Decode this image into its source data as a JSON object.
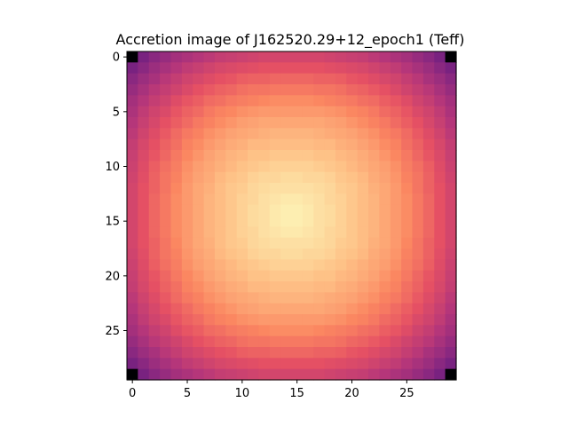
{
  "chart_data": {
    "type": "heatmap",
    "title": "Accretion image of J162520.29+12_epoch1 (Teff)",
    "xlabel": "",
    "ylabel": "",
    "colormap": "magma",
    "rows": 30,
    "cols": 30,
    "x_ticks": [
      0,
      5,
      10,
      15,
      20,
      25
    ],
    "y_ticks": [
      0,
      5,
      10,
      15,
      20,
      25
    ],
    "x_tick_labels": [
      "0",
      "5",
      "10",
      "15",
      "20",
      "25"
    ],
    "y_tick_labels": [
      "0",
      "5",
      "10",
      "15",
      "20",
      "25"
    ],
    "xlim": [
      -0.5,
      29.5
    ],
    "ylim": [
      29.5,
      -0.5
    ],
    "y_axis_inverted": true,
    "grid": false,
    "colorbar": false,
    "peak": {
      "x": 14.5,
      "y": 15
    },
    "corner_cells_masked": [
      [
        0,
        0
      ],
      [
        0,
        29
      ],
      [
        29,
        0
      ],
      [
        29,
        29
      ]
    ],
    "values": [
      [
        0.0,
        0.36,
        0.4,
        0.43,
        0.46,
        0.48,
        0.5,
        0.52,
        0.54,
        0.55,
        0.56,
        0.57,
        0.58,
        0.58,
        0.58,
        0.58,
        0.58,
        0.58,
        0.57,
        0.56,
        0.55,
        0.54,
        0.52,
        0.5,
        0.48,
        0.46,
        0.43,
        0.4,
        0.36,
        0.0
      ],
      [
        0.36,
        0.4,
        0.44,
        0.47,
        0.5,
        0.53,
        0.55,
        0.57,
        0.59,
        0.6,
        0.61,
        0.62,
        0.63,
        0.63,
        0.63,
        0.63,
        0.63,
        0.63,
        0.62,
        0.61,
        0.6,
        0.59,
        0.57,
        0.55,
        0.53,
        0.5,
        0.47,
        0.44,
        0.4,
        0.36
      ],
      [
        0.4,
        0.44,
        0.47,
        0.51,
        0.54,
        0.57,
        0.59,
        0.61,
        0.63,
        0.64,
        0.66,
        0.67,
        0.67,
        0.68,
        0.68,
        0.68,
        0.68,
        0.67,
        0.67,
        0.66,
        0.64,
        0.63,
        0.61,
        0.59,
        0.57,
        0.54,
        0.51,
        0.47,
        0.44,
        0.4
      ],
      [
        0.43,
        0.47,
        0.51,
        0.54,
        0.57,
        0.6,
        0.63,
        0.65,
        0.67,
        0.68,
        0.7,
        0.71,
        0.71,
        0.72,
        0.72,
        0.72,
        0.72,
        0.71,
        0.71,
        0.7,
        0.68,
        0.67,
        0.65,
        0.63,
        0.6,
        0.57,
        0.54,
        0.51,
        0.47,
        0.43
      ],
      [
        0.46,
        0.5,
        0.54,
        0.57,
        0.61,
        0.64,
        0.66,
        0.69,
        0.7,
        0.72,
        0.73,
        0.74,
        0.75,
        0.76,
        0.76,
        0.76,
        0.76,
        0.75,
        0.74,
        0.73,
        0.72,
        0.7,
        0.69,
        0.66,
        0.64,
        0.61,
        0.57,
        0.54,
        0.5,
        0.46
      ],
      [
        0.48,
        0.53,
        0.57,
        0.6,
        0.64,
        0.67,
        0.69,
        0.72,
        0.74,
        0.75,
        0.77,
        0.78,
        0.79,
        0.79,
        0.79,
        0.79,
        0.79,
        0.79,
        0.78,
        0.77,
        0.75,
        0.74,
        0.72,
        0.69,
        0.67,
        0.64,
        0.6,
        0.57,
        0.53,
        0.48
      ],
      [
        0.5,
        0.55,
        0.59,
        0.63,
        0.66,
        0.69,
        0.72,
        0.74,
        0.76,
        0.78,
        0.8,
        0.81,
        0.82,
        0.82,
        0.82,
        0.82,
        0.82,
        0.82,
        0.81,
        0.8,
        0.78,
        0.76,
        0.74,
        0.72,
        0.69,
        0.66,
        0.63,
        0.59,
        0.55,
        0.5
      ],
      [
        0.52,
        0.57,
        0.61,
        0.65,
        0.69,
        0.72,
        0.74,
        0.77,
        0.79,
        0.81,
        0.82,
        0.83,
        0.84,
        0.85,
        0.85,
        0.85,
        0.85,
        0.84,
        0.83,
        0.82,
        0.81,
        0.79,
        0.77,
        0.74,
        0.72,
        0.69,
        0.65,
        0.61,
        0.57,
        0.52
      ],
      [
        0.54,
        0.59,
        0.63,
        0.67,
        0.7,
        0.74,
        0.76,
        0.79,
        0.81,
        0.83,
        0.84,
        0.86,
        0.86,
        0.87,
        0.87,
        0.87,
        0.87,
        0.86,
        0.86,
        0.84,
        0.83,
        0.81,
        0.79,
        0.76,
        0.74,
        0.7,
        0.67,
        0.63,
        0.59,
        0.54
      ],
      [
        0.55,
        0.6,
        0.64,
        0.68,
        0.72,
        0.75,
        0.78,
        0.81,
        0.83,
        0.85,
        0.86,
        0.88,
        0.88,
        0.89,
        0.89,
        0.89,
        0.89,
        0.88,
        0.88,
        0.86,
        0.85,
        0.83,
        0.81,
        0.78,
        0.75,
        0.72,
        0.68,
        0.64,
        0.6,
        0.55
      ],
      [
        0.56,
        0.61,
        0.66,
        0.7,
        0.73,
        0.77,
        0.8,
        0.82,
        0.84,
        0.86,
        0.88,
        0.89,
        0.9,
        0.91,
        0.91,
        0.91,
        0.91,
        0.9,
        0.89,
        0.88,
        0.86,
        0.84,
        0.82,
        0.8,
        0.77,
        0.73,
        0.7,
        0.66,
        0.61,
        0.56
      ],
      [
        0.57,
        0.62,
        0.67,
        0.71,
        0.74,
        0.78,
        0.81,
        0.83,
        0.86,
        0.88,
        0.89,
        0.91,
        0.92,
        0.92,
        0.93,
        0.93,
        0.92,
        0.92,
        0.91,
        0.89,
        0.88,
        0.86,
        0.83,
        0.81,
        0.78,
        0.74,
        0.71,
        0.67,
        0.62,
        0.57
      ],
      [
        0.58,
        0.63,
        0.67,
        0.71,
        0.75,
        0.79,
        0.82,
        0.84,
        0.87,
        0.89,
        0.9,
        0.92,
        0.93,
        0.94,
        0.94,
        0.94,
        0.94,
        0.93,
        0.92,
        0.9,
        0.89,
        0.87,
        0.84,
        0.82,
        0.79,
        0.75,
        0.71,
        0.67,
        0.63,
        0.58
      ],
      [
        0.58,
        0.63,
        0.68,
        0.72,
        0.76,
        0.79,
        0.82,
        0.85,
        0.87,
        0.89,
        0.91,
        0.92,
        0.94,
        0.95,
        0.96,
        0.96,
        0.95,
        0.94,
        0.92,
        0.91,
        0.89,
        0.87,
        0.85,
        0.82,
        0.79,
        0.76,
        0.72,
        0.68,
        0.63,
        0.58
      ],
      [
        0.58,
        0.63,
        0.68,
        0.72,
        0.76,
        0.79,
        0.82,
        0.85,
        0.87,
        0.89,
        0.91,
        0.93,
        0.94,
        0.96,
        0.97,
        0.97,
        0.96,
        0.94,
        0.93,
        0.91,
        0.89,
        0.87,
        0.85,
        0.82,
        0.79,
        0.76,
        0.72,
        0.68,
        0.63,
        0.58
      ],
      [
        0.58,
        0.63,
        0.68,
        0.72,
        0.76,
        0.79,
        0.82,
        0.85,
        0.87,
        0.89,
        0.91,
        0.93,
        0.94,
        0.96,
        0.97,
        0.97,
        0.96,
        0.94,
        0.93,
        0.91,
        0.89,
        0.87,
        0.85,
        0.82,
        0.79,
        0.76,
        0.72,
        0.68,
        0.63,
        0.58
      ],
      [
        0.58,
        0.63,
        0.68,
        0.72,
        0.76,
        0.79,
        0.82,
        0.85,
        0.87,
        0.89,
        0.91,
        0.92,
        0.94,
        0.95,
        0.96,
        0.96,
        0.95,
        0.94,
        0.92,
        0.91,
        0.89,
        0.87,
        0.85,
        0.82,
        0.79,
        0.76,
        0.72,
        0.68,
        0.63,
        0.58
      ],
      [
        0.58,
        0.63,
        0.67,
        0.71,
        0.75,
        0.79,
        0.82,
        0.84,
        0.87,
        0.89,
        0.9,
        0.92,
        0.93,
        0.94,
        0.94,
        0.94,
        0.94,
        0.93,
        0.92,
        0.9,
        0.89,
        0.87,
        0.84,
        0.82,
        0.79,
        0.75,
        0.71,
        0.67,
        0.63,
        0.58
      ],
      [
        0.57,
        0.62,
        0.67,
        0.71,
        0.74,
        0.78,
        0.81,
        0.83,
        0.86,
        0.88,
        0.89,
        0.91,
        0.92,
        0.92,
        0.93,
        0.93,
        0.92,
        0.92,
        0.91,
        0.89,
        0.88,
        0.86,
        0.83,
        0.81,
        0.78,
        0.74,
        0.71,
        0.67,
        0.62,
        0.57
      ],
      [
        0.56,
        0.61,
        0.66,
        0.7,
        0.73,
        0.77,
        0.8,
        0.82,
        0.84,
        0.86,
        0.88,
        0.89,
        0.9,
        0.91,
        0.91,
        0.91,
        0.91,
        0.9,
        0.89,
        0.88,
        0.86,
        0.84,
        0.82,
        0.8,
        0.77,
        0.73,
        0.7,
        0.66,
        0.61,
        0.56
      ],
      [
        0.55,
        0.6,
        0.64,
        0.68,
        0.72,
        0.75,
        0.78,
        0.81,
        0.83,
        0.85,
        0.86,
        0.88,
        0.88,
        0.89,
        0.89,
        0.89,
        0.89,
        0.88,
        0.88,
        0.86,
        0.85,
        0.83,
        0.81,
        0.78,
        0.75,
        0.72,
        0.68,
        0.64,
        0.6,
        0.55
      ],
      [
        0.54,
        0.59,
        0.63,
        0.67,
        0.7,
        0.74,
        0.76,
        0.79,
        0.81,
        0.83,
        0.84,
        0.86,
        0.86,
        0.87,
        0.87,
        0.87,
        0.87,
        0.86,
        0.86,
        0.84,
        0.83,
        0.81,
        0.79,
        0.76,
        0.74,
        0.7,
        0.67,
        0.63,
        0.59,
        0.54
      ],
      [
        0.52,
        0.57,
        0.61,
        0.65,
        0.69,
        0.72,
        0.74,
        0.77,
        0.79,
        0.81,
        0.82,
        0.83,
        0.84,
        0.85,
        0.85,
        0.85,
        0.85,
        0.84,
        0.83,
        0.82,
        0.81,
        0.79,
        0.77,
        0.74,
        0.72,
        0.69,
        0.65,
        0.61,
        0.57,
        0.52
      ],
      [
        0.5,
        0.55,
        0.59,
        0.63,
        0.66,
        0.69,
        0.72,
        0.74,
        0.76,
        0.78,
        0.8,
        0.81,
        0.82,
        0.82,
        0.82,
        0.82,
        0.82,
        0.82,
        0.81,
        0.8,
        0.78,
        0.76,
        0.74,
        0.72,
        0.69,
        0.66,
        0.63,
        0.59,
        0.55,
        0.5
      ],
      [
        0.48,
        0.53,
        0.57,
        0.6,
        0.64,
        0.67,
        0.69,
        0.72,
        0.74,
        0.75,
        0.77,
        0.78,
        0.79,
        0.79,
        0.79,
        0.79,
        0.79,
        0.79,
        0.78,
        0.77,
        0.75,
        0.74,
        0.72,
        0.69,
        0.67,
        0.64,
        0.6,
        0.57,
        0.53,
        0.48
      ],
      [
        0.46,
        0.5,
        0.54,
        0.57,
        0.61,
        0.64,
        0.66,
        0.69,
        0.7,
        0.72,
        0.73,
        0.74,
        0.75,
        0.76,
        0.76,
        0.76,
        0.76,
        0.75,
        0.74,
        0.73,
        0.72,
        0.7,
        0.69,
        0.66,
        0.64,
        0.61,
        0.57,
        0.54,
        0.5,
        0.46
      ],
      [
        0.43,
        0.47,
        0.51,
        0.54,
        0.57,
        0.6,
        0.63,
        0.65,
        0.67,
        0.68,
        0.7,
        0.71,
        0.71,
        0.72,
        0.72,
        0.72,
        0.72,
        0.71,
        0.71,
        0.7,
        0.68,
        0.67,
        0.65,
        0.63,
        0.6,
        0.57,
        0.54,
        0.51,
        0.47,
        0.43
      ],
      [
        0.4,
        0.44,
        0.47,
        0.51,
        0.54,
        0.57,
        0.59,
        0.61,
        0.63,
        0.64,
        0.66,
        0.67,
        0.67,
        0.68,
        0.68,
        0.68,
        0.68,
        0.67,
        0.67,
        0.66,
        0.64,
        0.63,
        0.61,
        0.59,
        0.57,
        0.54,
        0.51,
        0.47,
        0.44,
        0.4
      ],
      [
        0.36,
        0.4,
        0.44,
        0.47,
        0.5,
        0.53,
        0.55,
        0.57,
        0.59,
        0.6,
        0.61,
        0.62,
        0.63,
        0.63,
        0.63,
        0.63,
        0.63,
        0.63,
        0.62,
        0.61,
        0.6,
        0.59,
        0.57,
        0.55,
        0.53,
        0.5,
        0.47,
        0.44,
        0.4,
        0.36
      ],
      [
        0.0,
        0.36,
        0.4,
        0.43,
        0.46,
        0.48,
        0.5,
        0.52,
        0.54,
        0.55,
        0.56,
        0.57,
        0.58,
        0.58,
        0.58,
        0.58,
        0.58,
        0.58,
        0.57,
        0.56,
        0.55,
        0.54,
        0.52,
        0.5,
        0.48,
        0.46,
        0.43,
        0.4,
        0.36,
        0.0
      ]
    ]
  }
}
